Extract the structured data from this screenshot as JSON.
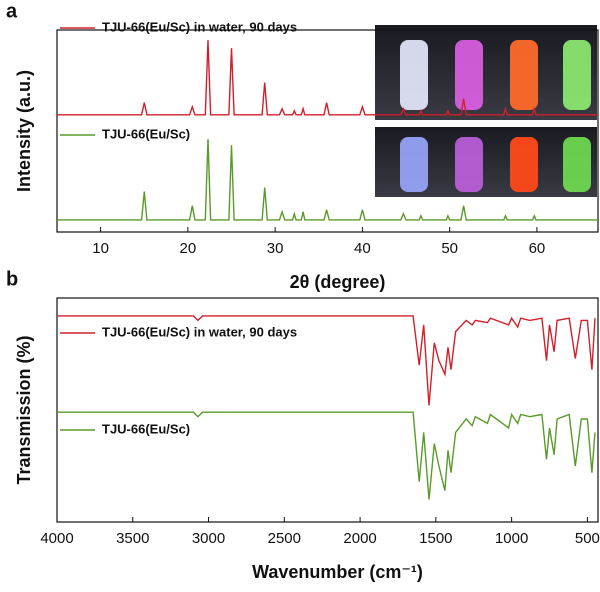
{
  "chart_data": [
    {
      "type": "line",
      "panel": "a",
      "xlabel": "2θ (degree)",
      "ylabel": "Intensity (a.u.)",
      "xlim": [
        5,
        67
      ],
      "ylim": [
        0,
        100
      ],
      "xticks": [
        10,
        20,
        30,
        40,
        50,
        60
      ],
      "x": [
        5,
        14.7,
        15.0,
        15.3,
        20.2,
        20.5,
        20.8,
        22.0,
        22.3,
        22.6,
        24.7,
        25.0,
        25.3,
        28.5,
        28.8,
        29.1,
        30.5,
        30.8,
        31.1,
        32.0,
        32.2,
        32.4,
        33.0,
        33.2,
        33.4,
        35.6,
        35.9,
        36.2,
        39.7,
        40.0,
        40.3,
        44.4,
        44.7,
        45.0,
        46.5,
        46.7,
        46.9,
        49.6,
        49.8,
        50.0,
        51.3,
        51.6,
        51.9,
        56.2,
        56.4,
        56.6,
        59.5,
        59.7,
        59.9,
        67
      ],
      "series": [
        {
          "name": "TJU-66(Eu/Sc) in water, 90 days",
          "color": "#d0202a",
          "values": [
            58,
            58,
            64,
            58,
            58,
            62,
            58,
            58,
            95,
            58,
            58,
            91,
            58,
            58,
            74,
            58,
            58,
            61,
            58,
            58,
            60,
            58,
            58,
            61,
            58,
            58,
            64,
            58,
            58,
            62,
            58,
            58,
            61,
            58,
            58,
            60,
            58,
            58,
            60,
            58,
            58,
            66,
            58,
            58,
            61,
            58,
            58,
            61,
            58,
            58
          ]
        },
        {
          "name": "TJU-66(Eu/Sc)",
          "color": "#5a9a2a",
          "values": [
            6,
            6,
            20,
            6,
            6,
            13,
            6,
            6,
            46,
            6,
            6,
            43,
            6,
            6,
            22,
            6,
            6,
            10,
            6,
            6,
            9,
            6,
            6,
            10,
            6,
            6,
            11,
            6,
            6,
            11,
            6,
            6,
            9,
            6,
            6,
            8,
            6,
            6,
            8,
            6,
            6,
            13,
            6,
            6,
            8,
            6,
            6,
            8,
            6,
            6
          ]
        }
      ]
    },
    {
      "type": "line",
      "panel": "b",
      "xlabel": "Wavenumber (cm⁻¹)",
      "ylabel": "Transmission (%)",
      "xlim": [
        4000,
        430
      ],
      "ylim": [
        0,
        100
      ],
      "xticks": [
        4000,
        3500,
        3000,
        2500,
        2000,
        1500,
        1000,
        500
      ],
      "x": [
        4000,
        3100,
        3070,
        3040,
        1650,
        1610,
        1580,
        1545,
        1510,
        1480,
        1440,
        1420,
        1400,
        1370,
        1300,
        1260,
        1240,
        1160,
        1140,
        1020,
        1000,
        960,
        940,
        880,
        800,
        770,
        750,
        720,
        700,
        620,
        580,
        540,
        500,
        470,
        450
      ],
      "series": [
        {
          "name": "TJU-66(Eu/Sc) in water, 90 days",
          "color": "#d0202a",
          "values": [
            92,
            92,
            90,
            92,
            92,
            70,
            88,
            52,
            80,
            72,
            66,
            78,
            68,
            85,
            90,
            88,
            90,
            89,
            91,
            88,
            91,
            87,
            91,
            90,
            91,
            72,
            88,
            76,
            90,
            91,
            73,
            90,
            90,
            68,
            91
          ]
        },
        {
          "name": "TJU-66(Eu/Sc)",
          "color": "#5a9a2a",
          "values": [
            49,
            49,
            47,
            49,
            49,
            18,
            40,
            10,
            35,
            25,
            14,
            32,
            22,
            40,
            46,
            43,
            47,
            44,
            48,
            42,
            48,
            44,
            48,
            47,
            48,
            28,
            42,
            30,
            46,
            48,
            25,
            46,
            46,
            22,
            40
          ]
        }
      ]
    }
  ]
}
